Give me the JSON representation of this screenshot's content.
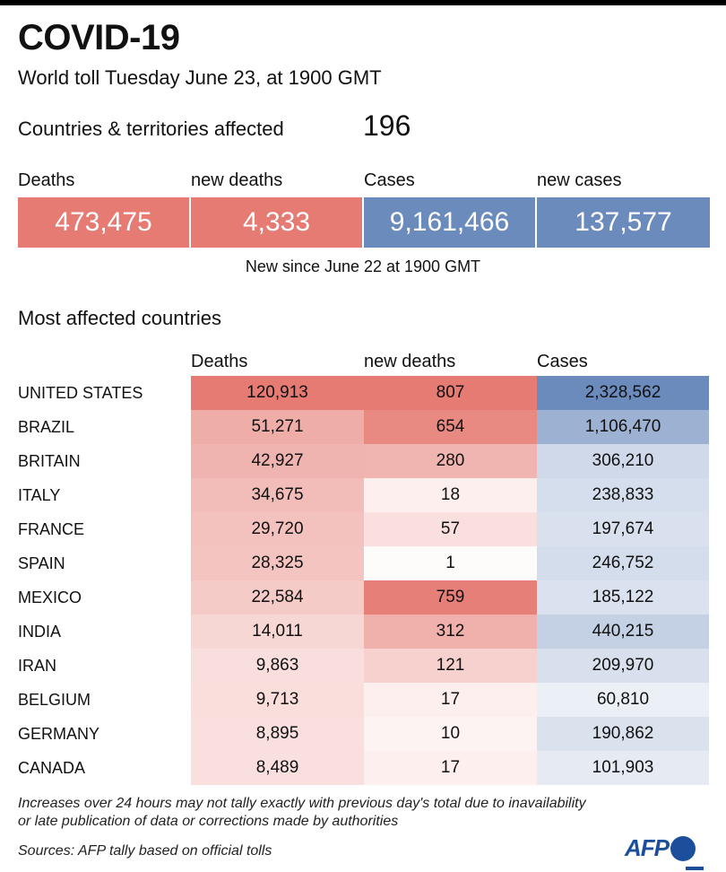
{
  "header": {
    "title": "COVID-19",
    "subtitle": "World toll Tuesday June 23, at 1900 GMT",
    "countries_label": "Countries & territories affected",
    "countries_value": "196"
  },
  "summary": {
    "labels": [
      "Deaths",
      "new deaths",
      "Cases",
      "new cases"
    ],
    "values": [
      "473,475",
      "4,333",
      "9,161,466",
      "137,577"
    ],
    "colors": [
      "#e57b73",
      "#e57b73",
      "#6b8bbd",
      "#6b8bbd"
    ],
    "since": "New since  June 22 at 1900 GMT"
  },
  "section_title": "Most affected countries",
  "colors": {
    "deaths_accent": "#e57b73",
    "cases_accent": "#6b8bbd"
  },
  "chart_data": {
    "type": "table",
    "title": "Most affected countries",
    "columns": [
      "Deaths",
      "new deaths",
      "Cases"
    ],
    "rows": [
      {
        "country": "UNITED STATES",
        "deaths": 120913,
        "new_deaths": 807,
        "cases": 2328562,
        "deaths_label": "120,913",
        "new_deaths_label": "807",
        "cases_label": "2,328,562"
      },
      {
        "country": "BRAZIL",
        "deaths": 51271,
        "new_deaths": 654,
        "cases": 1106470,
        "deaths_label": "51,271",
        "new_deaths_label": "654",
        "cases_label": "1,106,470"
      },
      {
        "country": "BRITAIN",
        "deaths": 42927,
        "new_deaths": 280,
        "cases": 306210,
        "deaths_label": "42,927",
        "new_deaths_label": "280",
        "cases_label": "306,210"
      },
      {
        "country": "ITALY",
        "deaths": 34675,
        "new_deaths": 18,
        "cases": 238833,
        "deaths_label": "34,675",
        "new_deaths_label": "18",
        "cases_label": "238,833"
      },
      {
        "country": "FRANCE",
        "deaths": 29720,
        "new_deaths": 57,
        "cases": 197674,
        "deaths_label": "29,720",
        "new_deaths_label": "57",
        "cases_label": "197,674"
      },
      {
        "country": "SPAIN",
        "deaths": 28325,
        "new_deaths": 1,
        "cases": 246752,
        "deaths_label": "28,325",
        "new_deaths_label": "1",
        "cases_label": "246,752"
      },
      {
        "country": "MEXICO",
        "deaths": 22584,
        "new_deaths": 759,
        "cases": 185122,
        "deaths_label": "22,584",
        "new_deaths_label": "759",
        "cases_label": "185,122"
      },
      {
        "country": "INDIA",
        "deaths": 14011,
        "new_deaths": 312,
        "cases": 440215,
        "deaths_label": "14,011",
        "new_deaths_label": "312",
        "cases_label": "440,215"
      },
      {
        "country": "IRAN",
        "deaths": 9863,
        "new_deaths": 121,
        "cases": 209970,
        "deaths_label": "9,863",
        "new_deaths_label": "121",
        "cases_label": "209,970"
      },
      {
        "country": "BELGIUM",
        "deaths": 9713,
        "new_deaths": 17,
        "cases": 60810,
        "deaths_label": "9,713",
        "new_deaths_label": "17",
        "cases_label": "60,810"
      },
      {
        "country": "GERMANY",
        "deaths": 8895,
        "new_deaths": 10,
        "cases": 190862,
        "deaths_label": "8,895",
        "new_deaths_label": "10",
        "cases_label": "190,862"
      },
      {
        "country": "CANADA",
        "deaths": 8489,
        "new_deaths": 17,
        "cases": 101903,
        "deaths_label": "8,489",
        "new_deaths_label": "17",
        "cases_label": "101,903"
      }
    ]
  },
  "footer": {
    "note_line1": "Increases over 24 hours may not tally exactly with previous day's total due to inavailability",
    "note_line2": "or late publication of data or corrections made by authorities",
    "sources": "Sources: AFP tally based on official tolls",
    "logo_text": "AFP"
  }
}
